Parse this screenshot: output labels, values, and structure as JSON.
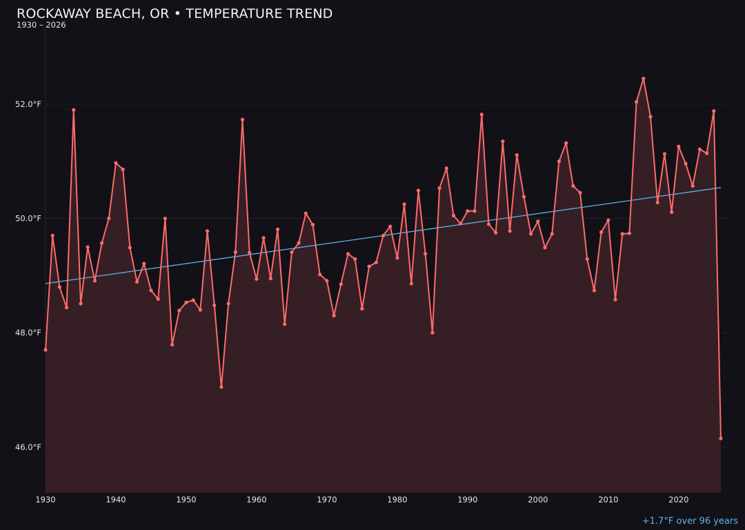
{
  "chart_data": {
    "type": "line",
    "title": "ROCKAWAY BEACH, OR • TEMPERATURE TREND",
    "subtitle": "1930 – 2026",
    "xlabel": "",
    "ylabel": "",
    "x": [
      1930,
      1931,
      1932,
      1933,
      1934,
      1935,
      1936,
      1937,
      1938,
      1939,
      1940,
      1941,
      1942,
      1943,
      1944,
      1945,
      1946,
      1947,
      1948,
      1949,
      1950,
      1951,
      1952,
      1953,
      1954,
      1955,
      1956,
      1957,
      1958,
      1959,
      1960,
      1961,
      1962,
      1963,
      1964,
      1965,
      1966,
      1967,
      1968,
      1969,
      1970,
      1971,
      1972,
      1973,
      1974,
      1975,
      1976,
      1977,
      1978,
      1979,
      1980,
      1981,
      1982,
      1983,
      1984,
      1985,
      1986,
      1987,
      1988,
      1989,
      1990,
      1991,
      1992,
      1993,
      1994,
      1995,
      1996,
      1997,
      1998,
      1999,
      2000,
      2001,
      2002,
      2003,
      2004,
      2005,
      2006,
      2007,
      2008,
      2009,
      2010,
      2011,
      2012,
      2013,
      2014,
      2015,
      2016,
      2017,
      2018,
      2019,
      2020,
      2021,
      2022,
      2023,
      2024,
      2025,
      2026
    ],
    "series": [
      {
        "values": [
          47.7,
          49.7,
          48.8,
          48.44,
          51.9,
          48.51,
          49.5,
          48.91,
          49.57,
          50.0,
          50.97,
          50.86,
          49.49,
          48.89,
          49.21,
          48.74,
          48.59,
          50.0,
          47.79,
          48.39,
          48.53,
          48.57,
          48.4,
          49.78,
          48.48,
          47.05,
          48.51,
          49.41,
          51.73,
          49.4,
          48.94,
          49.66,
          48.95,
          49.81,
          48.15,
          49.41,
          49.57,
          50.09,
          49.89,
          49.02,
          48.91,
          48.3,
          48.85,
          49.38,
          49.29,
          48.42,
          49.16,
          49.23,
          49.7,
          49.86,
          49.31,
          50.25,
          48.86,
          50.49,
          49.38,
          48.0,
          50.53,
          50.88,
          50.05,
          49.91,
          50.13,
          50.13,
          51.82,
          49.9,
          49.75,
          51.35,
          49.78,
          51.11,
          50.38,
          49.73,
          49.95,
          49.49,
          49.73,
          51.0,
          51.32,
          50.57,
          50.45,
          49.29,
          48.74,
          49.76,
          49.97,
          48.58,
          49.73,
          49.74,
          52.04,
          52.45,
          51.78,
          50.28,
          51.13,
          50.11,
          51.26,
          50.96,
          50.57,
          51.21,
          51.14,
          51.88,
          46.15
        ]
      }
    ],
    "trend": {
      "start": [
        1930,
        48.86
      ],
      "end": [
        2026,
        50.54
      ]
    },
    "annotation": "+1.7°F over 96 years",
    "xticks": [
      1930,
      1940,
      1950,
      1960,
      1970,
      1980,
      1990,
      2000,
      2010,
      2020
    ],
    "yticks": [
      46,
      48,
      50,
      52
    ],
    "ytick_labels": [
      "46.0°F",
      "48.0°F",
      "50.0°F",
      "52.0°F"
    ],
    "xlim": [
      1930,
      2026
    ],
    "ylim": [
      45.2,
      53.4
    ],
    "grid": true,
    "legend": "none",
    "colors": {
      "line": "#ff6b6b",
      "fill": "#351f25",
      "trend": "#5ab4ee",
      "background": "#121117",
      "annotation": "#5ab4ee"
    }
  }
}
